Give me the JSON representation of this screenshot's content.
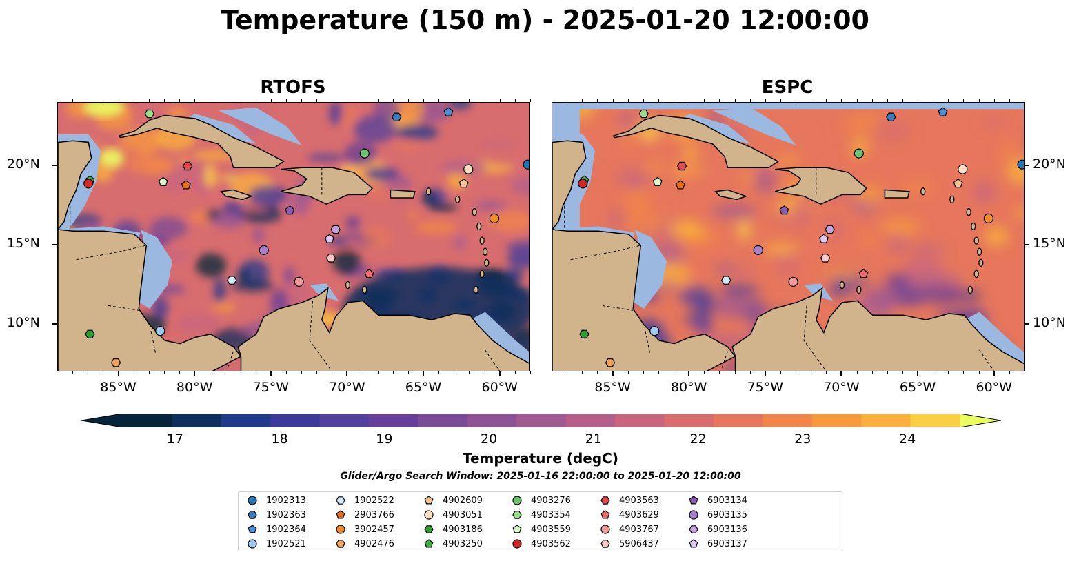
{
  "title": "Temperature (150 m) - 2025-01-20 12:00:00",
  "panels": [
    {
      "id": "rtofs",
      "title": "RTOFS"
    },
    {
      "id": "espc",
      "title": "ESPC"
    }
  ],
  "map": {
    "lon_range": [
      -89,
      -58
    ],
    "lat_range": [
      7,
      24
    ],
    "lon_ticks": [
      "85°W",
      "80°W",
      "75°W",
      "70°W",
      "65°W",
      "60°W"
    ],
    "lat_ticks": [
      "20°N",
      "15°N",
      "10°N"
    ],
    "lat_tick_values": [
      20,
      15,
      10
    ],
    "lon_tick_values": [
      -85,
      -80,
      -75,
      -70,
      -65,
      -60
    ],
    "land_color": "#d2b48c",
    "shallow_color": "#9ab8e0",
    "colormap": "thermal"
  },
  "colorbar": {
    "min": 16.5,
    "max": 24.5,
    "tick_labels": [
      "17",
      "18",
      "19",
      "20",
      "21",
      "22",
      "23",
      "24"
    ],
    "label": "Temperature (degC)",
    "colors": [
      "#07253a",
      "#0f2f5e",
      "#203a8a",
      "#3b3a9a",
      "#53409c",
      "#663f98",
      "#7a4b96",
      "#8d5395",
      "#a05a92",
      "#b4608b",
      "#c8667f",
      "#d86d6f",
      "#e6775c",
      "#f0864a",
      "#f7993d",
      "#fbb13b",
      "#f9cf45"
    ],
    "extend_low": "#07253a",
    "extend_high": "#e9fc60"
  },
  "search_window": "Glider/Argo Search Window: 2025-01-16 22:00:00 to 2025-01-20 12:00:00",
  "floats": [
    {
      "id": "1902313",
      "marker": "circle",
      "color": "#1f77b4",
      "lon": -58.2,
      "lat": 20.1
    },
    {
      "id": "1902363",
      "marker": "hexagon",
      "color": "#3e7cc0",
      "lon": -66.8,
      "lat": 23.1
    },
    {
      "id": "1902364",
      "marker": "pentagon",
      "color": "#4a8fd4",
      "lon": -63.4,
      "lat": 23.4
    },
    {
      "id": "1902521",
      "marker": "circle",
      "color": "#9ccaf0",
      "lon": -82.3,
      "lat": 9.6
    },
    {
      "id": "1902522",
      "marker": "hexagon",
      "color": "#cfe9f8",
      "lon": -77.6,
      "lat": 12.8
    },
    {
      "id": "2903766",
      "marker": "pentagon",
      "color": "#e8701a",
      "lon": -80.6,
      "lat": 18.8
    },
    {
      "id": "3902457",
      "marker": "circle",
      "color": "#f28c28",
      "lon": -60.4,
      "lat": 16.7
    },
    {
      "id": "4902476",
      "marker": "hexagon",
      "color": "#f5a25a",
      "lon": -85.2,
      "lat": 7.6
    },
    {
      "id": "4902609",
      "marker": "pentagon",
      "color": "#f8c48f",
      "lon": -62.4,
      "lat": 18.9
    },
    {
      "id": "4903051",
      "marker": "circle",
      "color": "#fde0c4",
      "lon": -62.1,
      "lat": 19.8
    },
    {
      "id": "4903186",
      "marker": "hexagon",
      "color": "#2ca02c",
      "lon": -86.9,
      "lat": 9.4
    },
    {
      "id": "4903250",
      "marker": "pentagon",
      "color": "#3bb33b",
      "lon": -86.9,
      "lat": 19.1
    },
    {
      "id": "4903276",
      "marker": "circle",
      "color": "#6cc56c",
      "lon": -68.9,
      "lat": 20.8
    },
    {
      "id": "4903354",
      "marker": "hexagon",
      "color": "#98df8a",
      "lon": -83.0,
      "lat": 23.3
    },
    {
      "id": "4903559",
      "marker": "pentagon",
      "color": "#d4f7c9",
      "lon": -82.1,
      "lat": 19.0
    },
    {
      "id": "4903562",
      "marker": "circle",
      "color": "#d62728",
      "lon": -87.0,
      "lat": 18.9
    },
    {
      "id": "4903563",
      "marker": "hexagon",
      "color": "#e34a4b",
      "lon": -80.5,
      "lat": 20.0
    },
    {
      "id": "4903629",
      "marker": "pentagon",
      "color": "#ee6e6e",
      "lon": -68.6,
      "lat": 13.2
    },
    {
      "id": "4903767",
      "marker": "circle",
      "color": "#f29a9a",
      "lon": -73.2,
      "lat": 12.7
    },
    {
      "id": "5906437",
      "marker": "hexagon",
      "color": "#fbc7c7",
      "lon": -71.1,
      "lat": 14.2
    },
    {
      "id": "6903134",
      "marker": "pentagon",
      "color": "#8e5bb7",
      "lon": -73.8,
      "lat": 17.2
    },
    {
      "id": "6903135",
      "marker": "circle",
      "color": "#a97fcf",
      "lon": -75.5,
      "lat": 14.7
    },
    {
      "id": "6903136",
      "marker": "hexagon",
      "color": "#c4a3e3",
      "lon": -70.8,
      "lat": 16.0
    },
    {
      "id": "6903137",
      "marker": "pentagon",
      "color": "#e0c8f5",
      "lon": -71.2,
      "lat": 15.4
    }
  ]
}
